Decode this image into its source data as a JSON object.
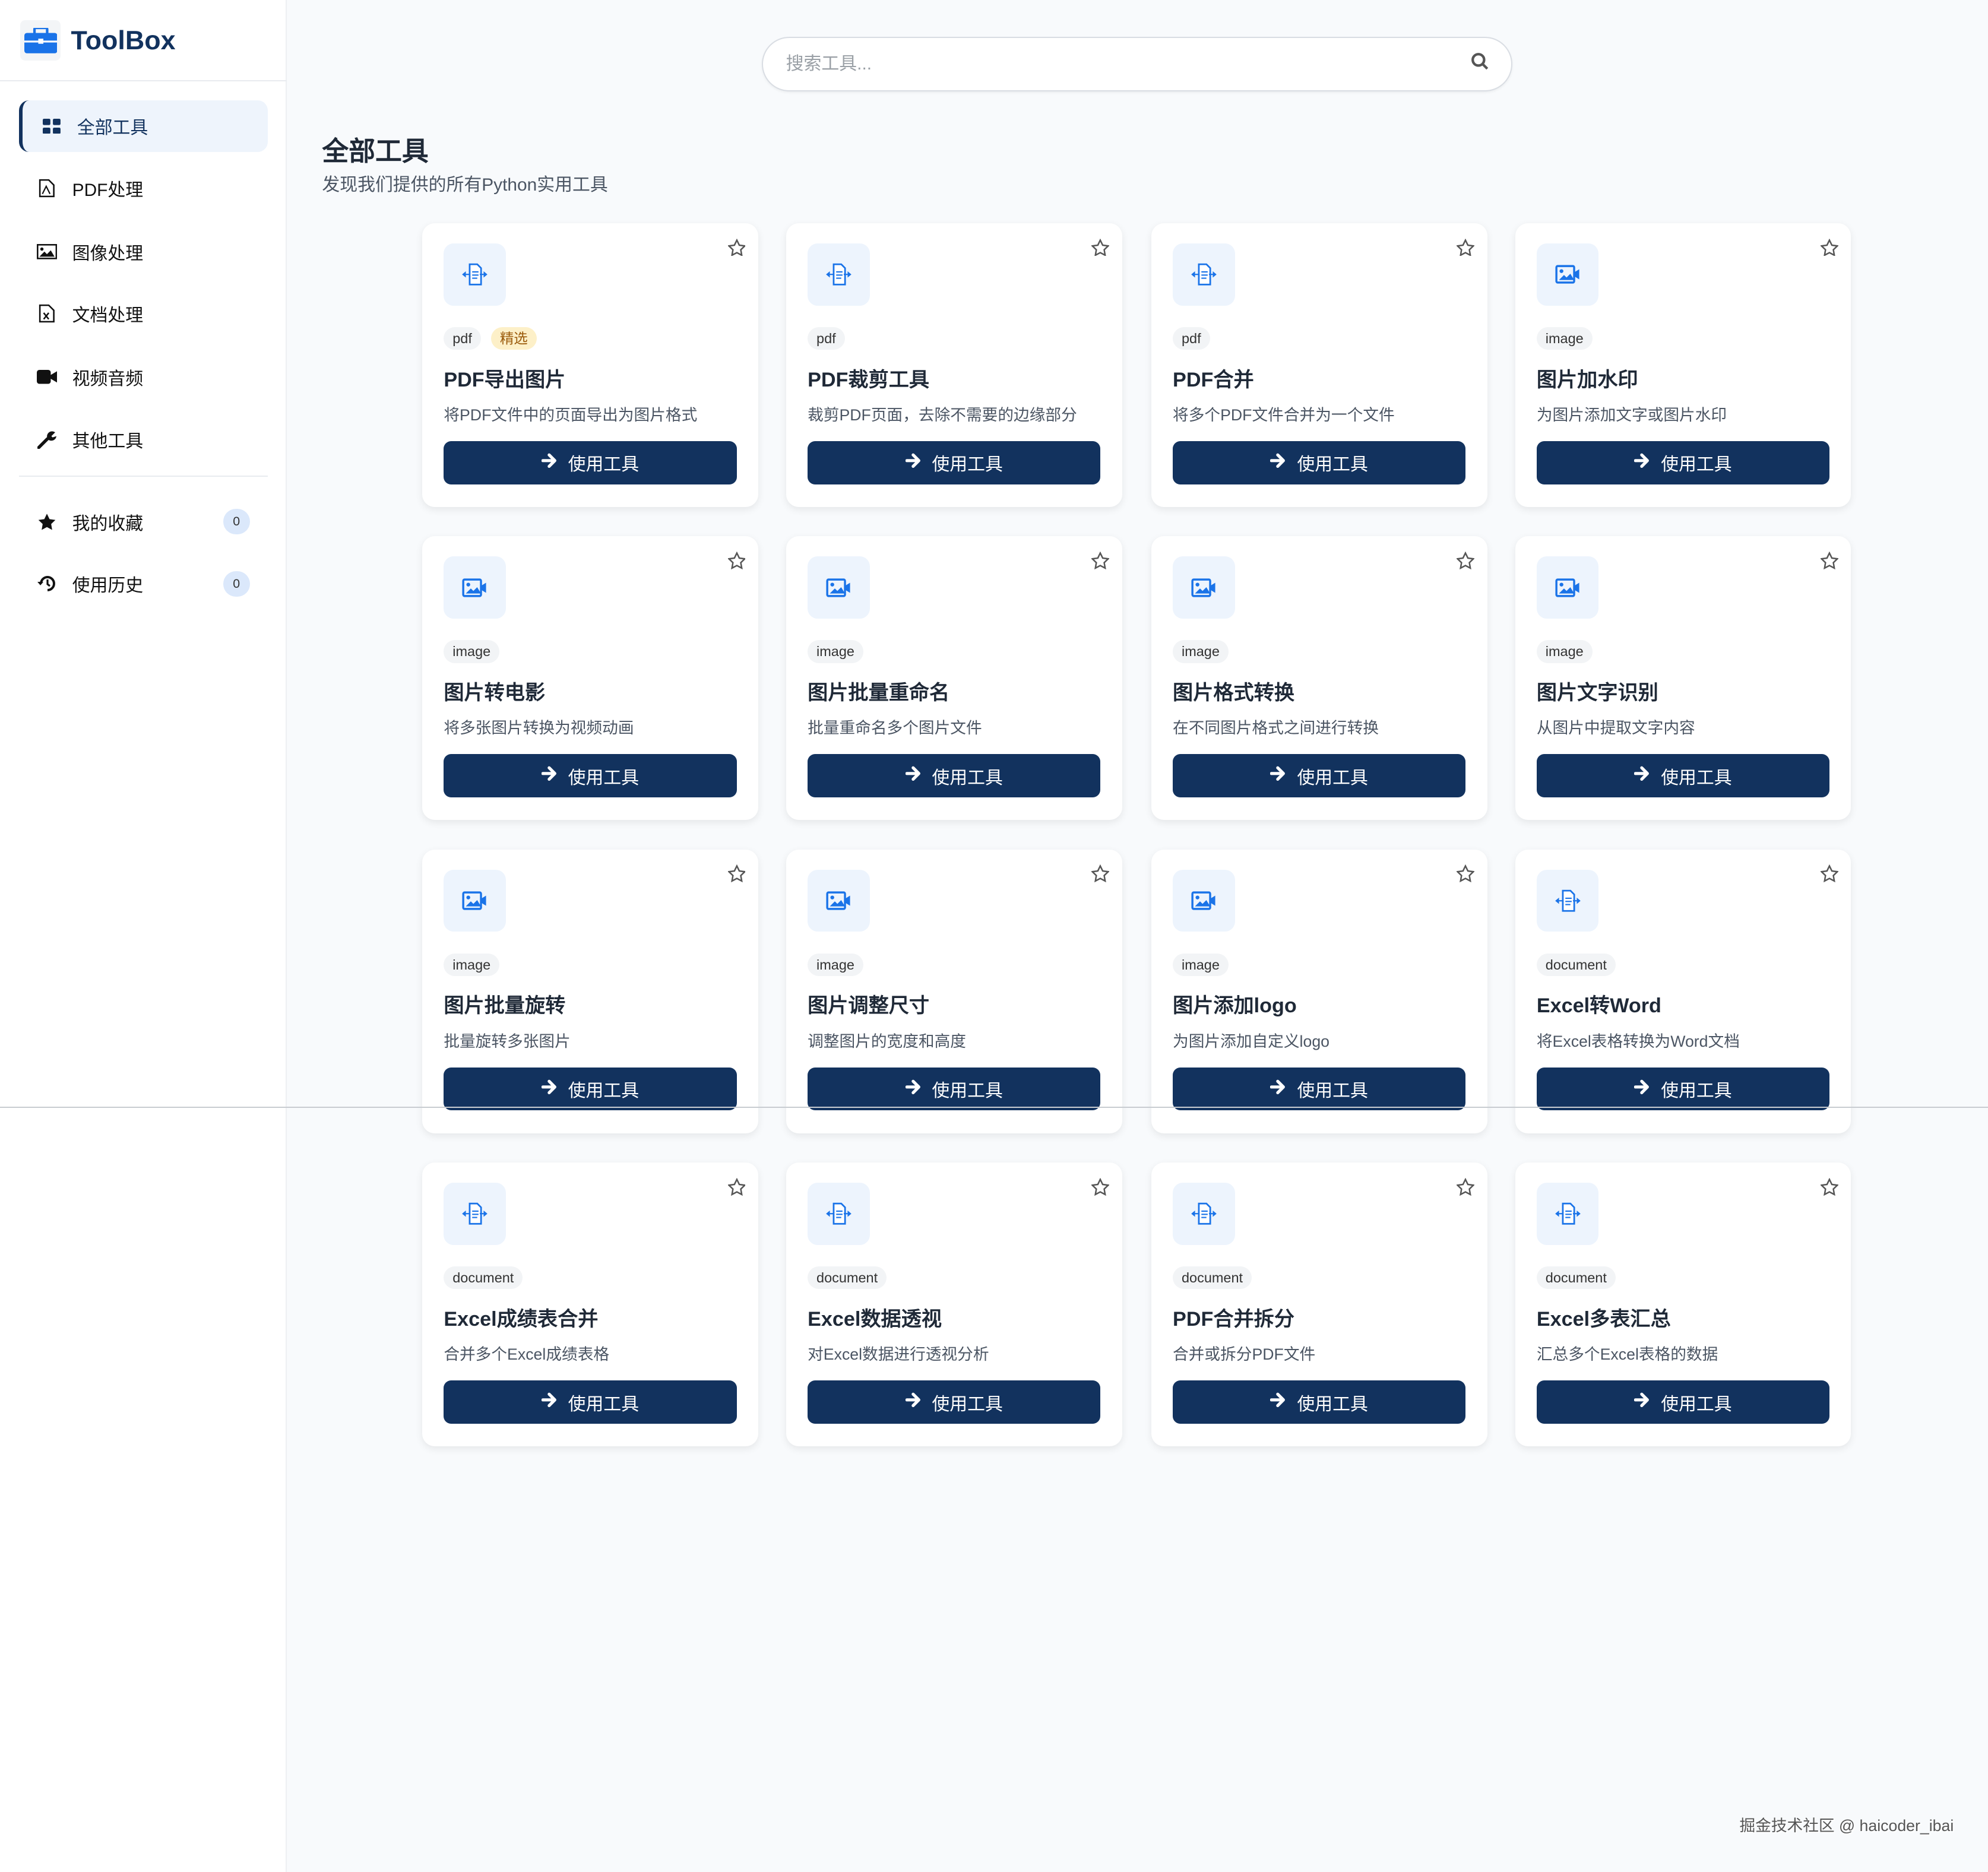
{
  "app": {
    "name": "ToolBox"
  },
  "search": {
    "placeholder": "搜索工具..."
  },
  "header": {
    "title": "全部工具",
    "subtitle": "发现我们提供的所有Python实用工具"
  },
  "sidebar": {
    "nav": [
      {
        "label": "全部工具",
        "icon": "grid-icon",
        "active": true
      },
      {
        "label": "PDF处理",
        "icon": "file-pdf-icon"
      },
      {
        "label": "图像处理",
        "icon": "image-icon"
      },
      {
        "label": "文档处理",
        "icon": "file-excel-icon"
      },
      {
        "label": "视频音频",
        "icon": "video-icon"
      },
      {
        "label": "其他工具",
        "icon": "wrench-icon"
      }
    ],
    "extra": [
      {
        "label": "我的收藏",
        "icon": "star-icon",
        "count": "0"
      },
      {
        "label": "使用历史",
        "icon": "history-icon",
        "count": "0"
      }
    ]
  },
  "button_label": "使用工具",
  "featured_label": "精选",
  "tools": [
    {
      "category": "pdf",
      "featured": true,
      "title": "PDF导出图片",
      "desc": "将PDF文件中的页面导出为图片格式",
      "icon": "file-icon"
    },
    {
      "category": "pdf",
      "title": "PDF裁剪工具",
      "desc": "裁剪PDF页面，去除不需要的边缘部分",
      "icon": "file-icon"
    },
    {
      "category": "pdf",
      "title": "PDF合并",
      "desc": "将多个PDF文件合并为一个文件",
      "icon": "file-icon"
    },
    {
      "category": "image",
      "title": "图片加水印",
      "desc": "为图片添加文字或图片水印",
      "icon": "image-icon"
    },
    {
      "category": "image",
      "title": "图片转电影",
      "desc": "将多张图片转换为视频动画",
      "icon": "image-icon"
    },
    {
      "category": "image",
      "title": "图片批量重命名",
      "desc": "批量重命名多个图片文件",
      "icon": "image-icon"
    },
    {
      "category": "image",
      "title": "图片格式转换",
      "desc": "在不同图片格式之间进行转换",
      "icon": "image-icon"
    },
    {
      "category": "image",
      "title": "图片文字识别",
      "desc": "从图片中提取文字内容",
      "icon": "image-icon"
    },
    {
      "category": "image",
      "title": "图片批量旋转",
      "desc": "批量旋转多张图片",
      "icon": "image-icon"
    },
    {
      "category": "image",
      "title": "图片调整尺寸",
      "desc": "调整图片的宽度和高度",
      "icon": "image-icon"
    },
    {
      "category": "image",
      "title": "图片添加logo",
      "desc": "为图片添加自定义logo",
      "icon": "image-icon"
    },
    {
      "category": "document",
      "title": "Excel转Word",
      "desc": "将Excel表格转换为Word文档",
      "icon": "file-icon"
    },
    {
      "category": "document",
      "title": "Excel成绩表合并",
      "desc": "合并多个Excel成绩表格",
      "icon": "file-icon"
    },
    {
      "category": "document",
      "title": "Excel数据透视",
      "desc": "对Excel数据进行透视分析",
      "icon": "file-icon"
    },
    {
      "category": "document",
      "title": "PDF合并拆分",
      "desc": "合并或拆分PDF文件",
      "icon": "file-icon"
    },
    {
      "category": "document",
      "title": "Excel多表汇总",
      "desc": "汇总多个Excel表格的数据",
      "icon": "file-icon"
    }
  ],
  "watermark": "掘金技术社区 @ haicoder_ibai",
  "colors": {
    "primary": "#12325e",
    "accent": "#1a73e8",
    "featured_bg": "#fdf0c8"
  }
}
